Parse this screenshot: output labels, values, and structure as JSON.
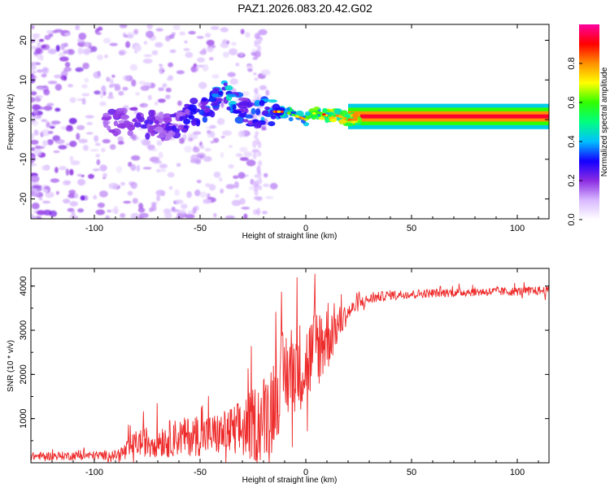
{
  "title": "PAZ1.2026.083.20.42.G02",
  "chart_data": [
    {
      "type": "heatmap",
      "xlabel": "Height of straight line (km)",
      "ylabel": "Frequency (Hz)",
      "xlim": [
        -130,
        115
      ],
      "ylim": [
        -25,
        24
      ],
      "xticks": [
        -100,
        -50,
        0,
        50,
        100
      ],
      "yticks": [
        -20,
        -10,
        0,
        10,
        20
      ],
      "colorbar": {
        "label": "Normalized spectral amplitude",
        "range": [
          0,
          1
        ],
        "ticks": [
          "0.0",
          "0.2",
          "0.4",
          "0.6",
          "0.8"
        ],
        "colors": [
          "#ffffff",
          "#d8b8ff",
          "#8a2be2",
          "#1400ff",
          "#00c0ff",
          "#00ff80",
          "#30ff00",
          "#ffff00",
          "#ff9000",
          "#ff0000",
          "#ff00a0"
        ]
      },
      "ridge": {
        "x": [
          -95,
          -85,
          -75,
          -65,
          -55,
          -45,
          -40,
          -35,
          -30,
          -25,
          -20,
          -15,
          -10,
          -5,
          0,
          5,
          10,
          15,
          20,
          30,
          40,
          50,
          60,
          70,
          80,
          90,
          100,
          110
        ],
        "freq": [
          -1,
          0,
          -1,
          -2,
          1,
          4,
          7,
          5,
          2,
          1,
          2,
          2,
          2,
          1,
          0,
          2,
          1,
          1,
          0,
          0,
          1,
          1,
          1,
          1,
          1,
          1,
          1,
          1
        ],
        "amplitude": [
          0.2,
          0.25,
          0.25,
          0.25,
          0.3,
          0.35,
          0.4,
          0.45,
          0.3,
          0.35,
          0.4,
          0.45,
          0.5,
          0.55,
          0.6,
          0.65,
          0.7,
          0.75,
          0.8,
          0.85,
          0.9,
          0.95,
          0.95,
          0.95,
          0.95,
          0.95,
          0.95,
          0.95
        ]
      }
    },
    {
      "type": "line",
      "xlabel": "Height of straight line (km)",
      "ylabel": "SNR (10 * v/v)",
      "xlim": [
        -130,
        115
      ],
      "ylim": [
        0,
        4400
      ],
      "xticks": [
        -100,
        -50,
        0,
        50,
        100
      ],
      "yticks": [
        1000,
        2000,
        3000,
        4000
      ],
      "color": "#ee2b2b",
      "trend": {
        "x": [
          -130,
          -90,
          -85,
          -80,
          -60,
          -40,
          -30,
          -20,
          -15,
          -10,
          -5,
          0,
          5,
          10,
          15,
          20,
          25,
          30,
          35,
          40,
          50,
          60,
          80,
          100,
          115
        ],
        "y": [
          150,
          170,
          250,
          450,
          580,
          650,
          750,
          1000,
          1500,
          2000,
          2200,
          2200,
          2600,
          2900,
          3100,
          3400,
          3600,
          3700,
          3760,
          3800,
          3820,
          3840,
          3870,
          3880,
          3900
        ]
      },
      "noise": {
        "x": [
          -130,
          -90,
          -85,
          -70,
          -40,
          -30,
          -20,
          -10,
          0,
          10,
          15,
          20,
          30,
          50,
          115
        ],
        "amplitude": [
          90,
          110,
          250,
          400,
          500,
          700,
          1000,
          1100,
          1000,
          900,
          450,
          200,
          120,
          100,
          100
        ]
      }
    }
  ]
}
